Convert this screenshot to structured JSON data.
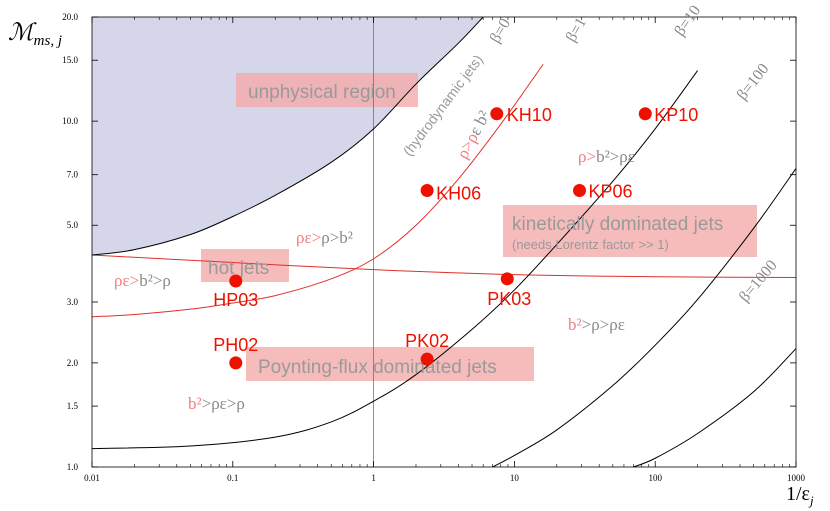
{
  "chart_data": {
    "type": "scatter",
    "title": "",
    "xlabel": "1/ε",
    "xlabel_sub": "j",
    "ylabel": "ℳ",
    "ylabel_sub": "ms, j",
    "xscale": "log",
    "yscale": "log",
    "xlim": [
      0.01,
      1000
    ],
    "ylim": [
      1.0,
      20.0
    ],
    "x_ticks": [
      {
        "v": 0.01,
        "label": "0.01"
      },
      {
        "v": 0.1,
        "label": "0.1"
      },
      {
        "v": 1,
        "label": "1"
      },
      {
        "v": 10,
        "label": "10"
      },
      {
        "v": 100,
        "label": "100"
      },
      {
        "v": 1000,
        "label": "1000"
      }
    ],
    "y_ticks": [
      {
        "v": 1.0,
        "label": "1.0"
      },
      {
        "v": 1.5,
        "label": "1.5"
      },
      {
        "v": 2.0,
        "label": "2.0"
      },
      {
        "v": 3.0,
        "label": "3.0"
      },
      {
        "v": 5.0,
        "label": "5.0"
      },
      {
        "v": 7.0,
        "label": "7.0"
      },
      {
        "v": 10.0,
        "label": "10.0"
      },
      {
        "v": 15.0,
        "label": "15.0"
      },
      {
        "v": 20.0,
        "label": "20.0"
      }
    ],
    "points": [
      {
        "name": "KH10",
        "x": 7.5,
        "y": 10.5
      },
      {
        "name": "KP10",
        "x": 85,
        "y": 10.5
      },
      {
        "name": "KH06",
        "x": 2.4,
        "y": 6.3
      },
      {
        "name": "KP06",
        "x": 29,
        "y": 6.3
      },
      {
        "name": "HP03",
        "x": 0.105,
        "y": 3.45
      },
      {
        "name": "PK03",
        "x": 8.9,
        "y": 3.5
      },
      {
        "name": "PH02",
        "x": 0.105,
        "y": 2.0
      },
      {
        "name": "PK02",
        "x": 2.4,
        "y": 2.05
      }
    ],
    "curves": [
      {
        "label": "β=0",
        "x": [
          0.01,
          0.02,
          0.05,
          0.1,
          0.2,
          0.5,
          1,
          2,
          4,
          6
        ],
        "y": [
          4.1,
          4.25,
          4.7,
          5.3,
          6.1,
          7.6,
          9.5,
          12.8,
          16.8,
          20.0
        ]
      },
      {
        "label": "β=1",
        "x": [
          0.01,
          0.02,
          0.05,
          0.1,
          0.2,
          0.5,
          1,
          2,
          4,
          8,
          16
        ],
        "y": [
          2.72,
          2.76,
          2.86,
          2.98,
          3.13,
          3.5,
          4.0,
          5.0,
          6.8,
          9.8,
          14.6
        ]
      },
      {
        "label": "β=10",
        "x": [
          0.01,
          0.05,
          0.2,
          0.5,
          1,
          2,
          5,
          10,
          20,
          50,
          100,
          200
        ],
        "y": [
          1.13,
          1.15,
          1.22,
          1.35,
          1.55,
          1.85,
          2.5,
          3.25,
          4.4,
          6.7,
          9.5,
          14.0
        ]
      },
      {
        "label": "β=100",
        "x": [
          7,
          10,
          20,
          50,
          100,
          200,
          500,
          1000
        ],
        "y": [
          1.0,
          1.08,
          1.28,
          1.72,
          2.25,
          3.05,
          4.9,
          7.3
        ]
      },
      {
        "label": "β=1000",
        "x": [
          70,
          100,
          200,
          500,
          1000
        ],
        "y": [
          1.0,
          1.06,
          1.25,
          1.65,
          2.2
        ]
      }
    ],
    "equality_line": {
      "label": "ρε>ρ>b²",
      "x": [
        0.01,
        0.1,
        1,
        10,
        100,
        1000
      ],
      "y": [
        4.1,
        3.9,
        3.72,
        3.6,
        3.55,
        3.53
      ]
    },
    "vertical_line": {
      "x": 1
    },
    "shaded_region": {
      "label": "unphysical region",
      "boundary_label": "(hydrodynamic jets)",
      "color": "#d6d6ea"
    },
    "region_labels": [
      {
        "key": "unphysical",
        "text": "unphysical region"
      },
      {
        "key": "hot",
        "text": "hot jets"
      },
      {
        "key": "kinetic",
        "text": "kinetically dominated jets"
      },
      {
        "key": "kinetic_sub",
        "text": "(needs Lorentz factor >> 1)"
      },
      {
        "key": "poynting",
        "text": "Poynting-flux dominated jets"
      }
    ],
    "inequalities": [
      {
        "key": "rho_gt_rhoeps_b2",
        "text": "ρ>ρε b²"
      },
      {
        "key": "rho_b2_rhoeps",
        "text": "ρ>b²>ρε"
      },
      {
        "key": "rhoeps_rho_b2",
        "text": "ρε>ρ>b²"
      },
      {
        "key": "rhoeps_b2_rho",
        "text": "ρε>b²>ρ"
      },
      {
        "key": "b2_rho_rhoeps",
        "text": "b²>ρ>ρε"
      },
      {
        "key": "b2_rhoeps_rho",
        "text": "b²>ρε>ρ"
      }
    ],
    "colors": {
      "point": "#ee1100",
      "red_curve": "#e0312a",
      "black_curve": "#000000",
      "label_box": "#f4aaaa",
      "label_text": "#9a9a9a",
      "ineq_pink": "#f08080",
      "ineq_gray": "#8a8a8a"
    },
    "grid": false,
    "legend": "none"
  }
}
